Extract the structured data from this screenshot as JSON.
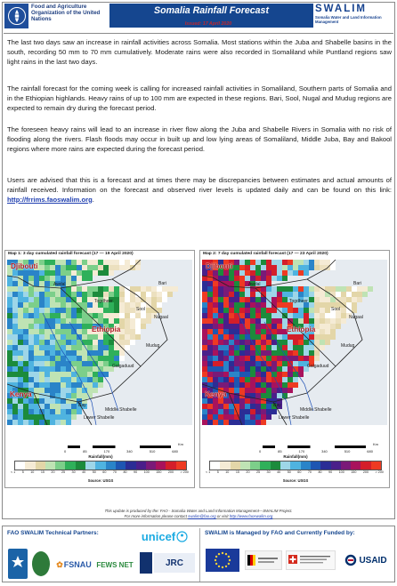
{
  "header": {
    "org_name": "Food and Agriculture Organization of the United Nations",
    "title": "Somalia Rainfall Forecast",
    "issued": "Issued: 17 April 2020",
    "brand": "SWALIM",
    "brand_sub": "Somalia Water and Land Information Management"
  },
  "body": {
    "p1": "The last two days saw an increase in rainfall activities across Somalia. Most stations within the Juba and Shabelle basins in the south, recording 50 mm to 70 mm cumulatively. Moderate rains were also recorded in Somaliland while Puntland regions saw light rains in the last two days.",
    "p2": "The rainfall forecast for the coming week is calling for increased rainfall activities in Somaliland, Southern parts of Somalia and in the Ethiopian highlands. Heavy rains of up to 100 mm are expected in these regions. Bari, Sool, Nugal and Mudug regions are expected to remain dry during the forecast period.",
    "p3": "The foreseen heavy rains will lead to an increase in river flow along the Juba and Shabelle Rivers in Somalia with no risk of flooding along the rivers. Flash floods may occur in built up and low lying areas of Somaliland, Middle Juba, Bay and Bakool regions where more rains are expected during the forecast period.",
    "p4": "Users are advised that this is a forecast and at times there may be discrepancies between estimates and actual amounts of rainfall received. Information on the forecast and observed river levels is updated daily and can be found on this link: ",
    "link": "http://frrims.faoswalim.org",
    "p4_end": "."
  },
  "maps": [
    {
      "title": "Map 1: 3 day cumulated rainfall forecast  (17 — 19 April 2020)",
      "labels": {
        "djibouti": "Djibouti",
        "ethiopia": "Ethiopia",
        "kenya": "Kenya",
        "bari": "Bari",
        "awdal": "Awdal",
        "togdheer": "Togdheer",
        "sool": "Sool",
        "nugaal": "Nugaal",
        "mudug": "Mudug",
        "galgaduud": "Galgaduud",
        "bay": "Bay",
        "middle_shabelle": "Middle Shabelle",
        "lower_shabelle": "Lower Shabelle"
      }
    },
    {
      "title": "Map 2: 7 day cumulated rainfall forecast  (17 — 23 April 2020)",
      "labels": {
        "djibouti": "Djibouti",
        "ethiopia": "Ethiopia",
        "kenya": "Kenya",
        "bari": "Bari",
        "awdal": "Awdal",
        "togdheer": "Togdheer",
        "sool": "Sool",
        "nugaal": "Nugaal",
        "mudug": "Mudug",
        "galgaduud": "Galgaduud",
        "bay": "Bay",
        "middle_shabelle": "Middle Shabelle",
        "lower_shabelle": "Lower Shabelle"
      }
    }
  ],
  "scale": {
    "ticks": [
      "0",
      "85",
      "170",
      "340",
      "510",
      "680"
    ],
    "unit": "Km"
  },
  "legend": {
    "title": "Rainfall(mm)",
    "ticks": [
      "< 1",
      "5",
      "10",
      "15",
      "20",
      "25",
      "30",
      "40",
      "50",
      "60",
      "70",
      "80",
      "90",
      "100",
      "150",
      "200",
      "> 200"
    ],
    "colors": [
      "#ffffff",
      "#f5ebd5",
      "#e3d6a8",
      "#bfe3b4",
      "#7ccf8a",
      "#2fb05a",
      "#1c8b3c",
      "#9ed6e8",
      "#4fb3e0",
      "#2a84c8",
      "#1e56b2",
      "#2b2d95",
      "#4a1f8a",
      "#7a1a78",
      "#a8125c",
      "#d41e2a",
      "#ee3a22"
    ],
    "source": "Source: USGS"
  },
  "footer": {
    "produced_line1": "This update is produced by the: FAO - Somalia Water and Land Information Management—SWALIM Project.",
    "produced_line2_pre": "For more information please contact ",
    "produced_email": "swalim@fao.org",
    "produced_mid": " or visit ",
    "produced_url": "http://www.faoswalim.org",
    "tech_title": "FAO SWALIM Technical Partners:",
    "funded_title": "SWALIM is Managed by FAO and Currently Funded by:",
    "partners": {
      "unicef": "unicef",
      "fsnau": "FSNAU",
      "fews": "FEWS NET",
      "jrc": "JRC",
      "usaid": "USAID"
    }
  }
}
